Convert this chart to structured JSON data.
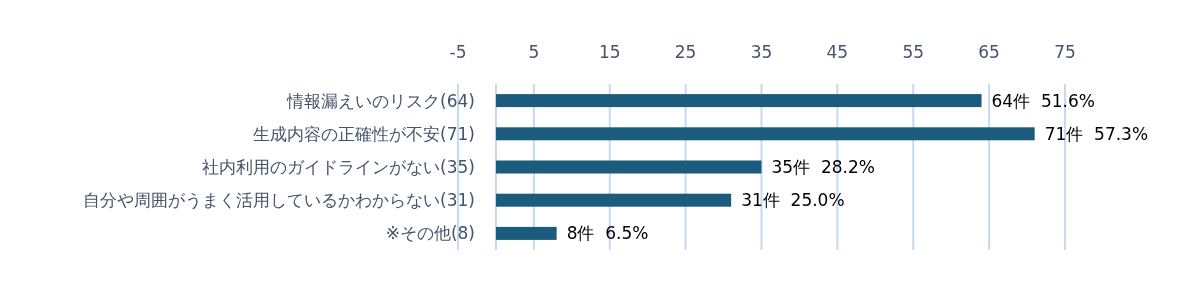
{
  "chart_data": {
    "type": "bar",
    "orientation": "horizontal",
    "categories": [
      "情報漏えいのリスク(64)",
      "生成内容の正確性が不安(71)",
      "社内利用のガイドラインがない(35)",
      "自分や周囲がうまく活用しているかわからない(31)",
      "※その他(8)"
    ],
    "values": [
      64,
      71,
      35,
      31,
      8
    ],
    "value_labels": [
      "64件  51.6%",
      "71件  57.3%",
      "35件  28.2%",
      "31件  25.0%",
      "8件  6.5%"
    ],
    "color": "#1b5b7d",
    "xlim": [
      -5,
      75
    ],
    "xticks": [
      -5,
      5,
      15,
      25,
      35,
      45,
      55,
      65,
      75
    ],
    "grid": "x"
  }
}
